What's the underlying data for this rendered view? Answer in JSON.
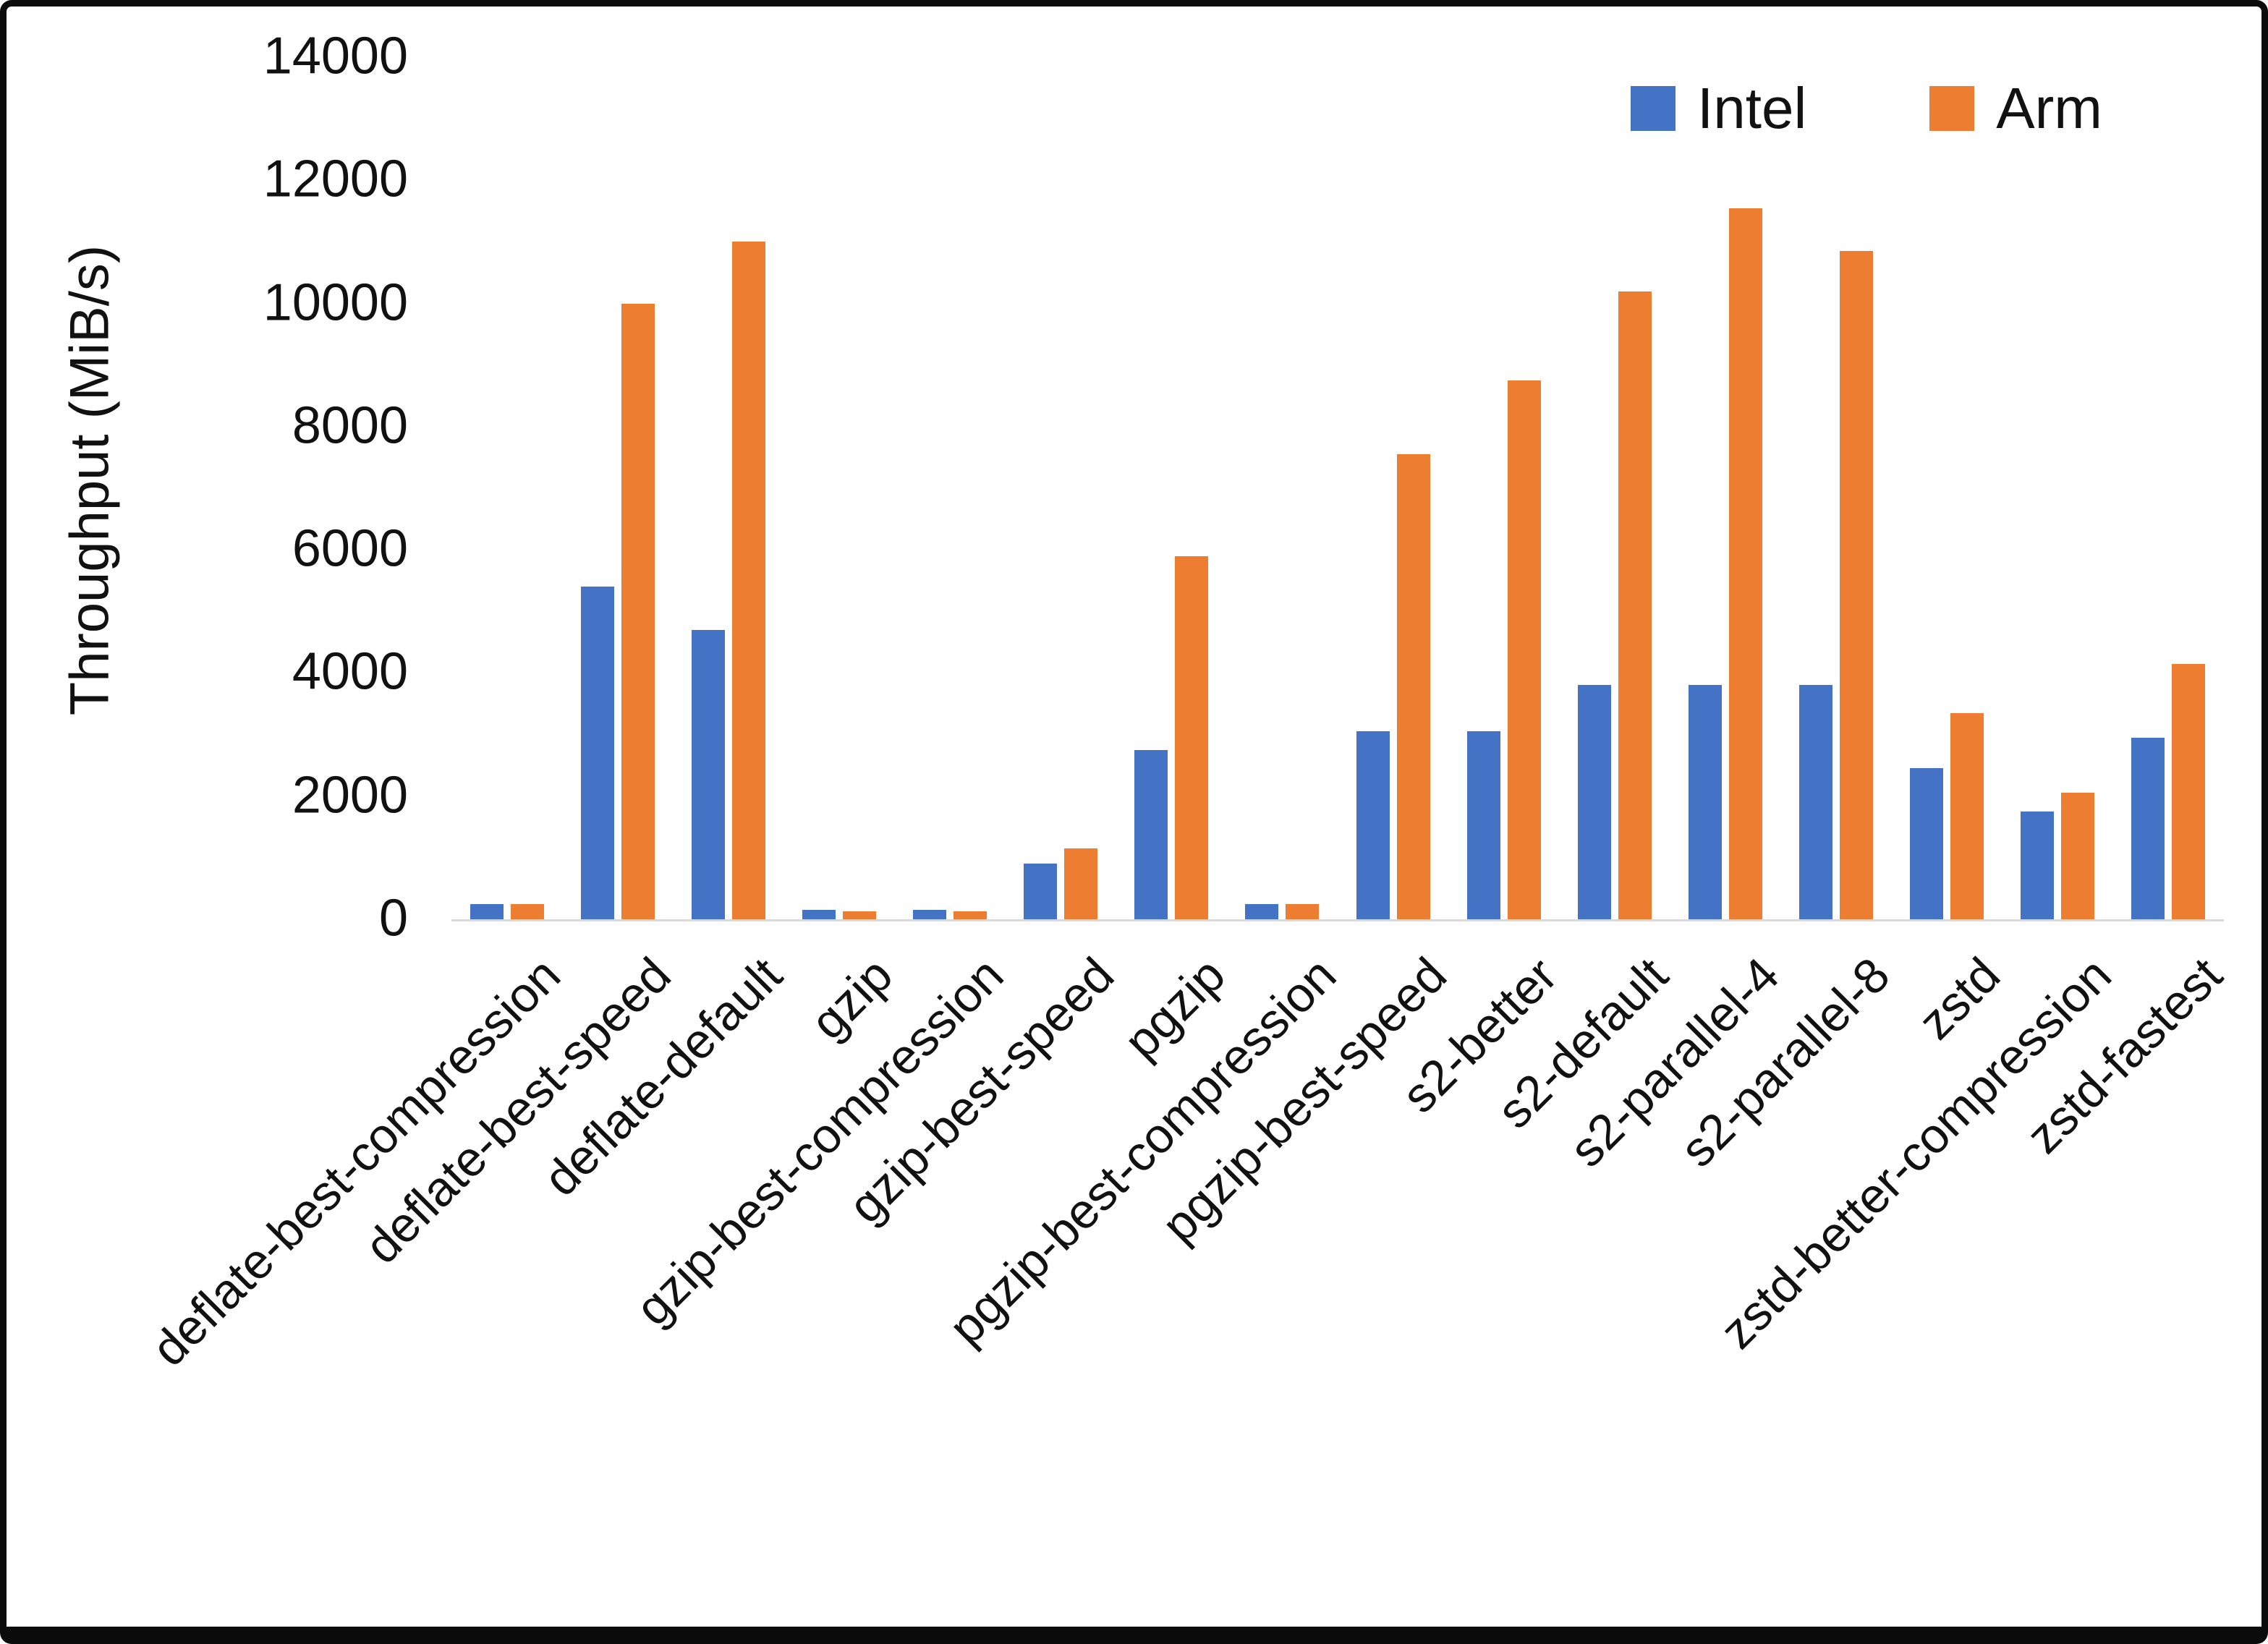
{
  "chart_data": {
    "type": "bar",
    "title": "",
    "xlabel": "",
    "ylabel": "Throughput (MiB/s)",
    "ylim": [
      0,
      14000
    ],
    "yticks": [
      0,
      2000,
      4000,
      6000,
      8000,
      10000,
      12000,
      14000
    ],
    "grid": false,
    "legend_position": "top-right",
    "categories": [
      "deflate-best-compression",
      "deflate-best-speed",
      "deflate-default",
      "gzip",
      "gzip-best-compression",
      "gzip-best-speed",
      "pgzip",
      "pgzip-best-compression",
      "pgzip-best-speed",
      "s2-better",
      "s2-default",
      "s2-parallel-4",
      "s2-parallel-8",
      "zstd",
      "zstd-better-compression",
      "zstd-fastest"
    ],
    "series": [
      {
        "name": "Intel",
        "color": "#4472C4",
        "values": [
          250,
          5400,
          4700,
          150,
          150,
          900,
          2750,
          250,
          3050,
          3050,
          3800,
          3800,
          3800,
          2450,
          1750,
          2950
        ]
      },
      {
        "name": "Arm",
        "color": "#ED7D31",
        "values": [
          250,
          10000,
          11000,
          130,
          130,
          1150,
          5900,
          250,
          7550,
          8750,
          10200,
          11550,
          10850,
          3350,
          2050,
          4150
        ]
      }
    ]
  }
}
